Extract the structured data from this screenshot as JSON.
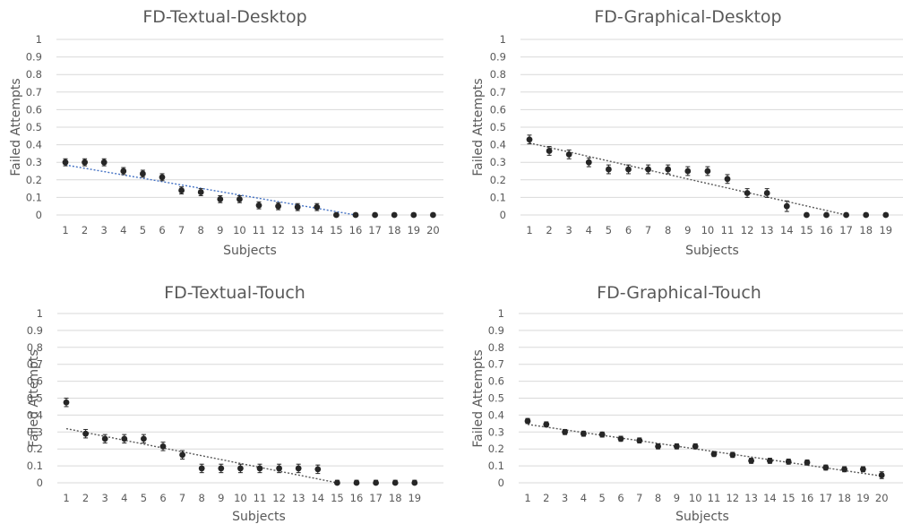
{
  "colors": {
    "point": "#262626",
    "grid": "#d9d9d9",
    "trend_blue": "#4472c4",
    "trend_gray": "#595959",
    "text": "#595959"
  },
  "chart_data": [
    {
      "type": "scatter",
      "title": "FD-Textual-Desktop",
      "xlabel": "Subjects",
      "ylabel": "Failed Attempts",
      "ylim": [
        0,
        1
      ],
      "yticks": [
        "0",
        "0.1",
        "0.2",
        "0.3",
        "0.4",
        "0.5",
        "0.6",
        "0.7",
        "0.8",
        "0.9",
        "1"
      ],
      "categories": [
        "1",
        "2",
        "3",
        "4",
        "5",
        "6",
        "7",
        "8",
        "9",
        "10",
        "11",
        "12",
        "13",
        "14",
        "15",
        "16",
        "17",
        "18",
        "19",
        "20"
      ],
      "values": [
        0.3,
        0.3,
        0.3,
        0.25,
        0.235,
        0.215,
        0.14,
        0.13,
        0.09,
        0.09,
        0.055,
        0.05,
        0.045,
        0.045,
        0,
        0,
        0,
        0,
        0,
        0
      ],
      "error": [
        0.02,
        0.02,
        0.02,
        0.02,
        0.02,
        0.02,
        0.02,
        0.02,
        0.02,
        0.02,
        0.02,
        0.02,
        0.02,
        0.02,
        0.01,
        0.01,
        0.01,
        0.01,
        0.01,
        0.01
      ],
      "trendline": {
        "style": "dotted",
        "color": "blue",
        "x": [
          1,
          16
        ],
        "y": [
          0.285,
          0.0
        ]
      },
      "grid": true
    },
    {
      "type": "scatter",
      "title": "FD-Graphical-Desktop",
      "xlabel": "Subjects",
      "ylabel": "Failed Attempts",
      "ylim": [
        0,
        1
      ],
      "yticks": [
        "0",
        "0.1",
        "0.2",
        "0.3",
        "0.4",
        "0.5",
        "0.6",
        "0.7",
        "0.8",
        "0.9",
        "1"
      ],
      "categories": [
        "1",
        "2",
        "3",
        "4",
        "5",
        "6",
        "7",
        "8",
        "9",
        "10",
        "11",
        "12",
        "13",
        "14",
        "15",
        "16",
        "17",
        "18",
        "19"
      ],
      "values": [
        0.43,
        0.365,
        0.345,
        0.3,
        0.26,
        0.26,
        0.26,
        0.26,
        0.25,
        0.25,
        0.205,
        0.125,
        0.125,
        0.05,
        0,
        0,
        0,
        0,
        0
      ],
      "error": [
        0.025,
        0.025,
        0.025,
        0.025,
        0.025,
        0.025,
        0.025,
        0.025,
        0.025,
        0.025,
        0.025,
        0.025,
        0.025,
        0.03,
        0.01,
        0.01,
        0.01,
        0.01,
        0.01
      ],
      "trendline": {
        "style": "dotted",
        "color": "gray",
        "x": [
          1,
          17
        ],
        "y": [
          0.41,
          0.0
        ]
      },
      "grid": true
    },
    {
      "type": "scatter",
      "title": "FD-Textual-Touch",
      "xlabel": "Subjects",
      "ylabel": "Failed Attempts",
      "ylim": [
        0,
        1
      ],
      "yticks": [
        "0",
        "0.1",
        "0.2",
        "0.3",
        "0.4",
        "0.5",
        "0.6",
        "0.7",
        "0.8",
        "0.9",
        "1"
      ],
      "categories": [
        "1",
        "2",
        "3",
        "4",
        "5",
        "6",
        "7",
        "8",
        "9",
        "10",
        "11",
        "12",
        "13",
        "14",
        "15",
        "16",
        "17",
        "18",
        "19"
      ],
      "values": [
        0.475,
        0.29,
        0.26,
        0.26,
        0.26,
        0.215,
        0.165,
        0.085,
        0.085,
        0.085,
        0.085,
        0.085,
        0.085,
        0.08,
        0,
        0,
        0,
        0,
        0
      ],
      "error": [
        0.025,
        0.025,
        0.025,
        0.025,
        0.025,
        0.025,
        0.025,
        0.025,
        0.025,
        0.025,
        0.025,
        0.025,
        0.025,
        0.025,
        0.015,
        0.015,
        0.015,
        0.015,
        0.015
      ],
      "trendline": {
        "style": "dotted",
        "color": "gray",
        "x": [
          1,
          15
        ],
        "y": [
          0.32,
          0.0
        ]
      },
      "grid": true
    },
    {
      "type": "scatter",
      "title": "FD-Graphical-Touch",
      "xlabel": "Subjects",
      "ylabel": "Failed Attempts",
      "ylim": [
        0,
        1
      ],
      "yticks": [
        "0",
        "0.1",
        "0.2",
        "0.3",
        "0.4",
        "0.5",
        "0.6",
        "0.7",
        "0.8",
        "0.9",
        "1"
      ],
      "categories": [
        "1",
        "2",
        "3",
        "4",
        "5",
        "6",
        "7",
        "8",
        "9",
        "10",
        "11",
        "12",
        "13",
        "14",
        "15",
        "16",
        "17",
        "18",
        "19",
        "20"
      ],
      "values": [
        0.365,
        0.345,
        0.3,
        0.29,
        0.285,
        0.26,
        0.25,
        0.215,
        0.215,
        0.215,
        0.17,
        0.165,
        0.13,
        0.13,
        0.125,
        0.12,
        0.09,
        0.08,
        0.08,
        0.045
      ],
      "error": [
        0.015,
        0.015,
        0.015,
        0.015,
        0.015,
        0.015,
        0.015,
        0.015,
        0.015,
        0.015,
        0.015,
        0.015,
        0.015,
        0.015,
        0.015,
        0.015,
        0.015,
        0.015,
        0.015,
        0.02
      ],
      "trendline": {
        "style": "dotted",
        "color": "gray",
        "x": [
          1,
          20
        ],
        "y": [
          0.345,
          0.04
        ]
      },
      "grid": true
    }
  ]
}
